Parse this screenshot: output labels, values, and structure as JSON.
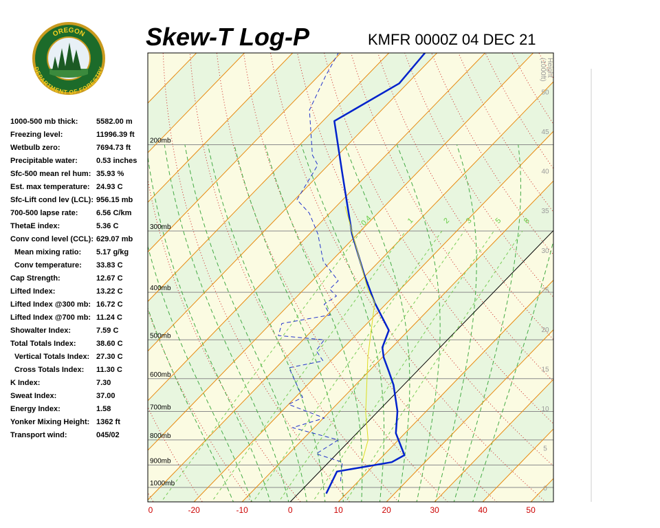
{
  "logo": {
    "top": "OREGON",
    "bottom": "DEPARTMENT OF FORESTRY"
  },
  "stats": [
    {
      "label": "1000-500 mb thick:",
      "value": "5582.00 m"
    },
    {
      "label": "Freezing level:",
      "value": "11996.39 ft"
    },
    {
      "label": "Wetbulb zero:",
      "value": "7694.73 ft"
    },
    {
      "label": "Precipitable water:",
      "value": "0.53 inches"
    },
    {
      "label": "Sfc-500 mean rel hum:",
      "value": "35.93 %"
    },
    {
      "label": "Est. max temperature:",
      "value": "24.93 C"
    },
    {
      "label": "Sfc-Lift cond lev (LCL):",
      "value": "956.15 mb"
    },
    {
      "label": "700-500 lapse rate:",
      "value": "6.56 C/km"
    },
    {
      "label": "ThetaE index:",
      "value": "5.36 C"
    },
    {
      "label": "Conv cond level (CCL):",
      "value": "629.07 mb"
    },
    {
      "label": "Mean mixing ratio:",
      "value": "5.17 g/kg",
      "indent": true
    },
    {
      "label": "Conv temperature:",
      "value": "33.83 C",
      "indent": true
    },
    {
      "label": "Cap Strength:",
      "value": "12.67 C"
    },
    {
      "label": "Lifted Index:",
      "value": "13.22 C"
    },
    {
      "label": "Lifted Index @300 mb:",
      "value": "16.72 C"
    },
    {
      "label": "Lifted Index @700 mb:",
      "value": "11.24 C"
    },
    {
      "label": "Showalter Index:",
      "value": "7.59 C"
    },
    {
      "label": "Total Totals Index:",
      "value": "38.60 C"
    },
    {
      "label": "Vertical Totals Index:",
      "value": "27.30 C",
      "indent": true
    },
    {
      "label": "Cross Totals Index:",
      "value": "11.30 C",
      "indent": true
    },
    {
      "label": "K Index:",
      "value": "7.30"
    },
    {
      "label": "Sweat Index:",
      "value": "37.00"
    },
    {
      "label": "Energy Index:",
      "value": "1.58"
    },
    {
      "label": "Yonker Mixing Height:",
      "value": "1362 ft"
    },
    {
      "label": "Transport wind:",
      "value": "045/02"
    }
  ],
  "chart_data": {
    "type": "skew-t",
    "title": "Skew-T Log-P",
    "subtitle": "KMFR 0000Z 04 DEC 21",
    "xlim": [
      -29.6,
      54.7
    ],
    "xticks": [
      {
        "value": -30,
        "label": "0"
      },
      -20,
      -10,
      0,
      10,
      20,
      30,
      40,
      50
    ],
    "ylim": [
      1070,
      130
    ],
    "log_scale": true,
    "pressure_levels": [
      {
        "value": 1000,
        "label": "1000mb"
      },
      {
        "value": 900,
        "label": "900mb"
      },
      {
        "value": 800,
        "label": "800mb"
      },
      {
        "value": 700,
        "label": "700mb"
      },
      {
        "value": 600,
        "label": "600mb"
      },
      {
        "value": 500,
        "label": "500mb"
      },
      {
        "value": 400,
        "label": "400mb"
      },
      {
        "value": 300,
        "label": "300mb"
      },
      {
        "value": 200,
        "label": "200mb"
      }
    ],
    "height_label": [
      "Height",
      "(1000ft)"
    ],
    "height_lim": [
      -1.8,
      54.9
    ],
    "height_ticks": [
      0,
      5,
      10,
      15,
      20,
      25,
      30,
      35,
      40,
      45,
      50
    ],
    "mixing_ratios": [
      0.4,
      1,
      2,
      3,
      5,
      8
    ],
    "series": [
      {
        "color": "#0022cc",
        "style": "solid",
        "pressure": [
          1029,
          928,
          888,
          859,
          775,
          699,
          618,
          580,
          543,
          518,
          478,
          420,
          369,
          304,
          267,
          227,
          179,
          150,
          130
        ],
        "values": [
          5.8,
          3.6,
          13.1,
          14.3,
          8.1,
          4.0,
          -2.1,
          -5.8,
          -9.7,
          -12.0,
          -14.1,
          -22.6,
          -30.3,
          -41.2,
          -47.7,
          -55.8,
          -67.6,
          -61.7,
          -62.5
        ]
      },
      {
        "color": "#2233cc",
        "style": "dashed",
        "pressure": [
          971,
          888,
          854,
          800,
          755,
          722,
          677,
          655,
          570,
          552,
          526,
          500,
          490,
          463,
          445,
          423,
          407,
          394,
          379,
          346,
          304,
          276,
          259,
          220,
          210,
          170,
          145,
          130
        ],
        "values": [
          6.3,
          2.8,
          -4.3,
          -2.5,
          -14.5,
          -9.8,
          -20.0,
          -18.5,
          -27.3,
          -21.6,
          -25.1,
          -25.6,
          -36.0,
          -37.7,
          -29.4,
          -32.8,
          -31.9,
          -34.7,
          -34.6,
          -41.6,
          -48.3,
          -54.2,
          -59.5,
          -62.2,
          -65.3,
          -75.0,
          -78.5,
          -80.5
        ]
      },
      {
        "color": "#dddd22",
        "style": "thin",
        "pressure": [
          882,
          800,
          704,
          543,
          420,
          394,
          267
        ],
        "values": [
          6.7,
          3.7,
          -2.3,
          -13.0,
          -22.6,
          -26.8,
          -48.2
        ]
      }
    ]
  }
}
